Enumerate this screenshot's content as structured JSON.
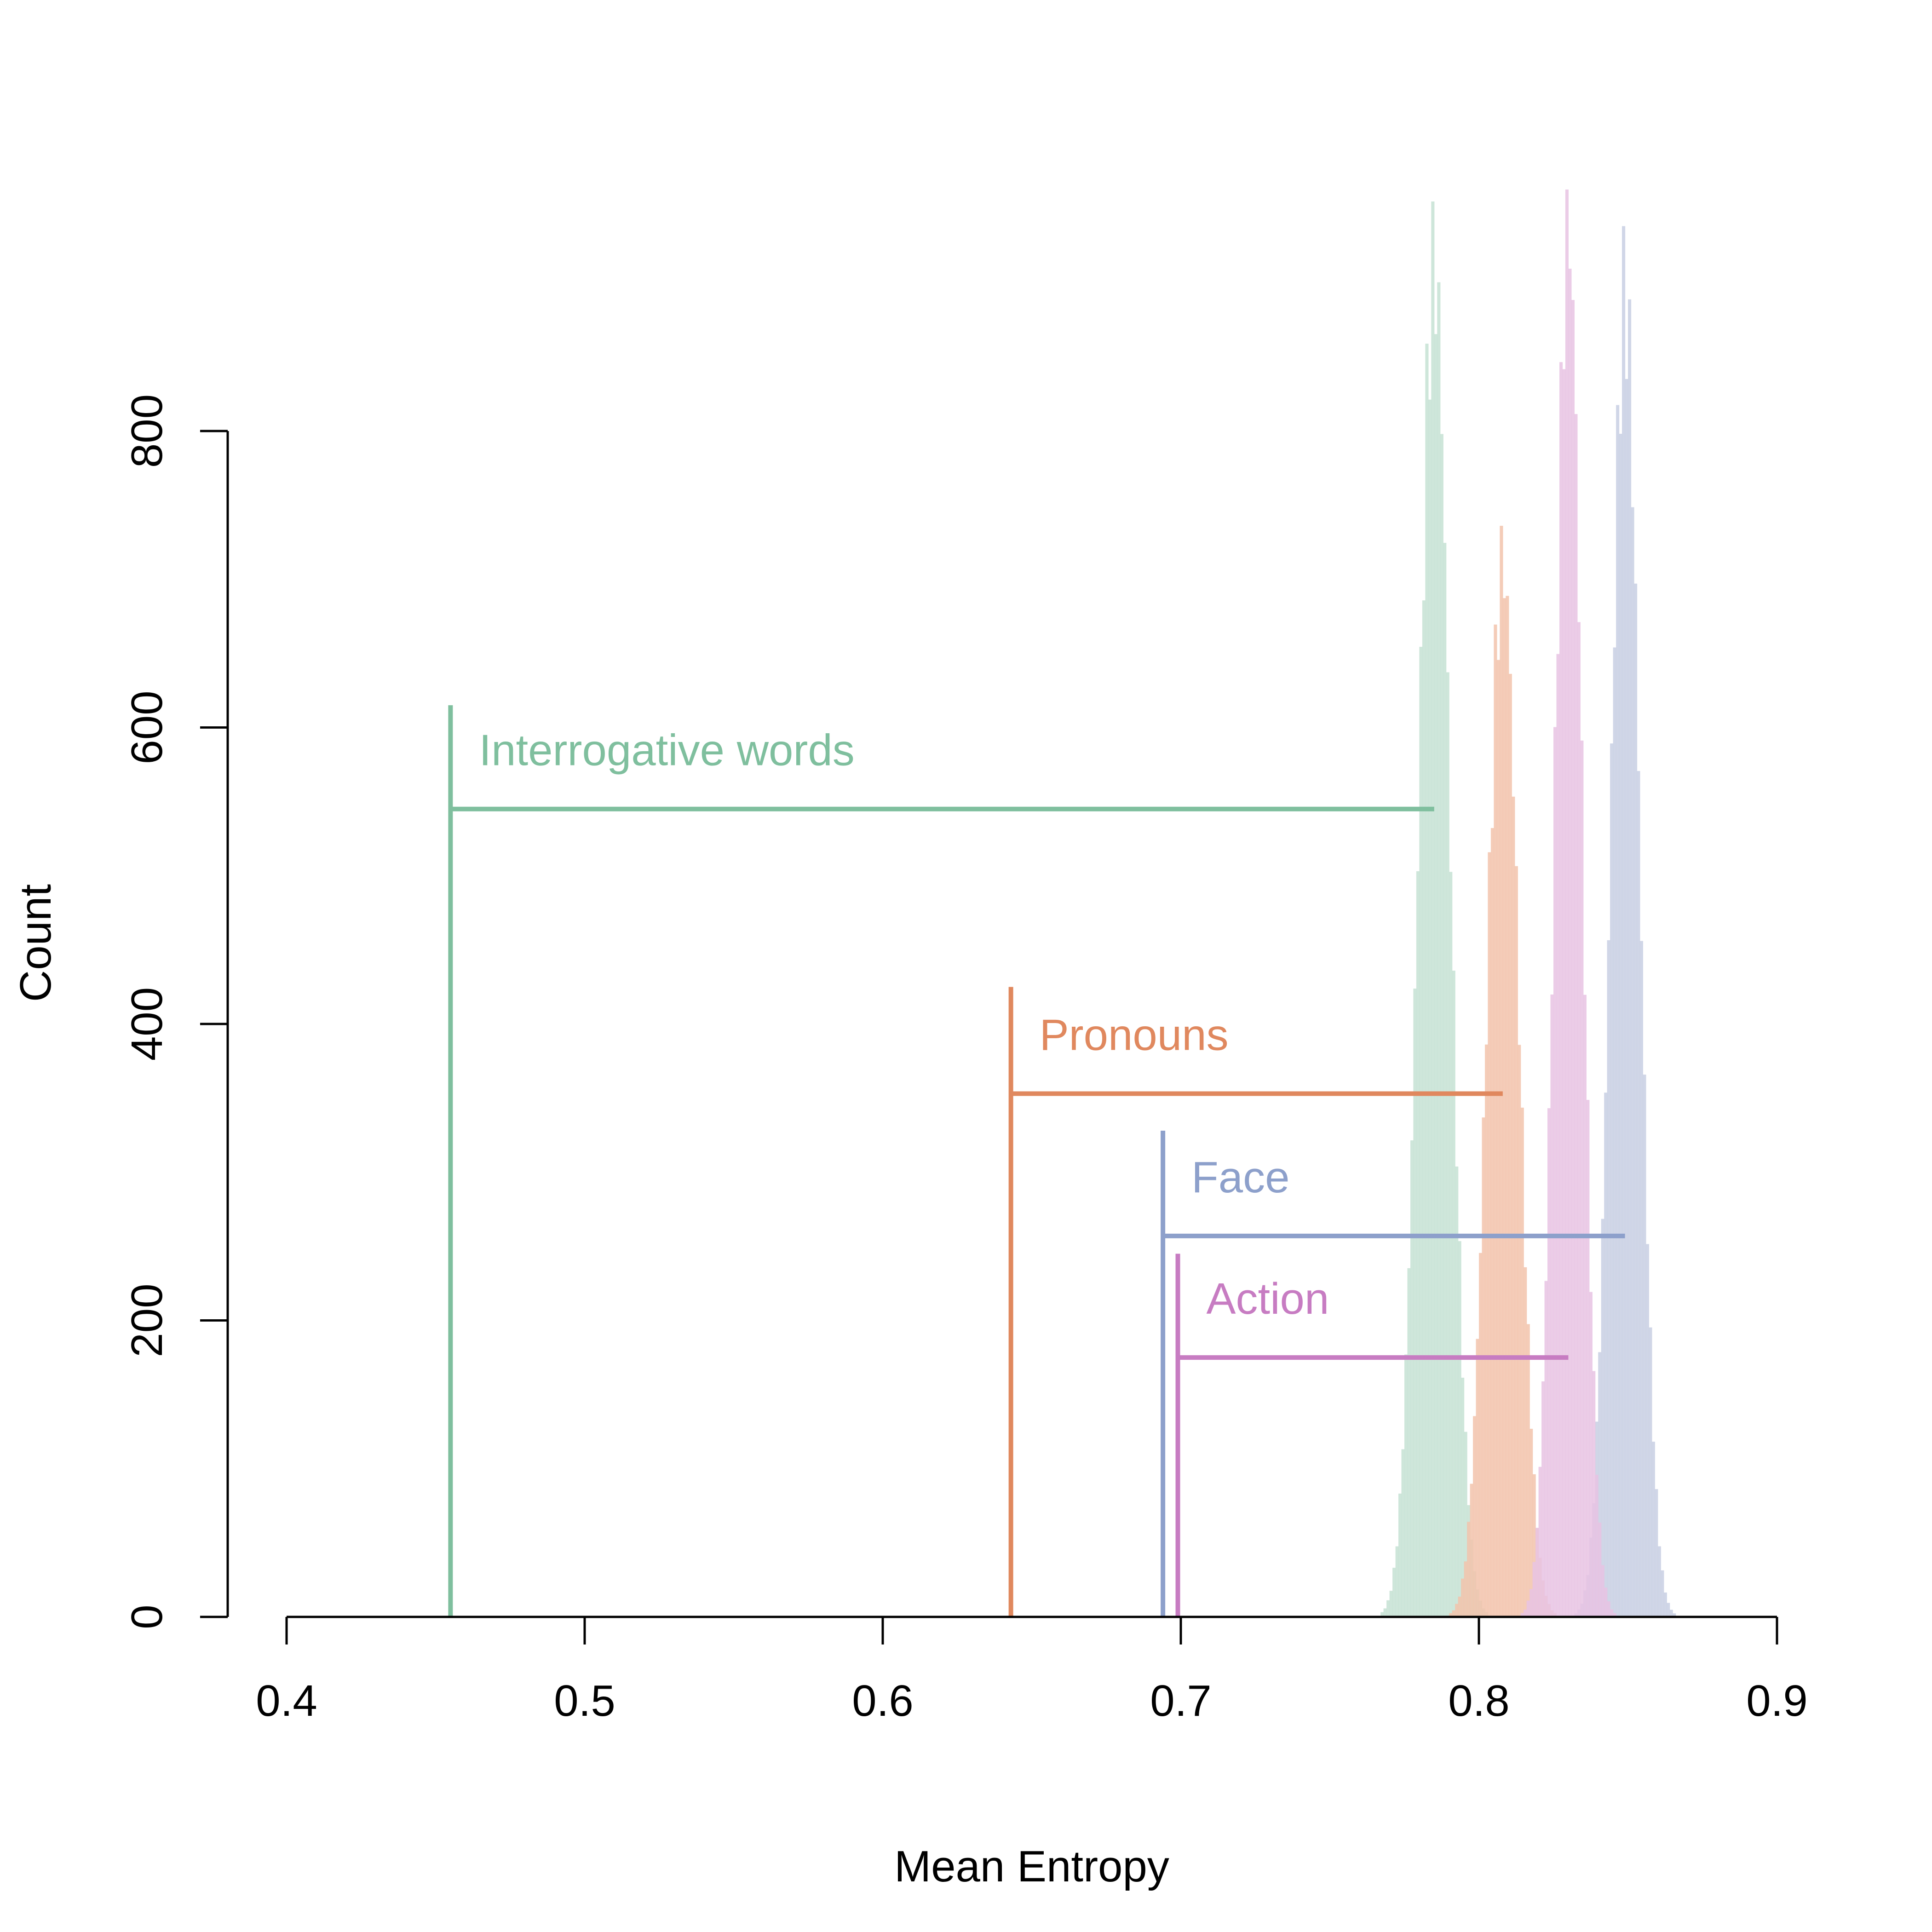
{
  "chart_data": {
    "type": "histogram",
    "xlabel": "Mean Entropy",
    "ylabel": "Count",
    "xlim": [
      0.4,
      0.9
    ],
    "ylim": [
      0,
      800
    ],
    "x_ticks": [
      "0.4",
      "0.5",
      "0.6",
      "0.7",
      "0.8",
      "0.9"
    ],
    "y_ticks": [
      "0",
      "200",
      "400",
      "600",
      "800"
    ],
    "grid": false,
    "legend": "none",
    "series": [
      {
        "label": "Interrogative words",
        "color": "#7FBF9E",
        "fill": "#C6E2D3",
        "observed": 0.455,
        "null_mean": 0.785,
        "null_sd": 0.0052,
        "peak": 910,
        "marker_top": 615,
        "bracket_y": 545
      },
      {
        "label": "Pronouns",
        "color": "#E0885E",
        "fill": "#F2C3AB",
        "observed": 0.643,
        "null_mean": 0.808,
        "null_sd": 0.0052,
        "peak": 710,
        "marker_top": 425,
        "bracket_y": 353
      },
      {
        "label": "Face",
        "color": "#8DA0CB",
        "fill": "#C8CFE3",
        "observed": 0.694,
        "null_mean": 0.849,
        "null_sd": 0.0048,
        "peak": 890,
        "marker_top": 328,
        "bracket_y": 257
      },
      {
        "label": "Action",
        "color": "#C77CC2",
        "fill": "#E8C3E3",
        "observed": 0.699,
        "null_mean": 0.83,
        "null_sd": 0.0045,
        "peak": 935,
        "marker_top": 245,
        "bracket_y": 175
      }
    ]
  }
}
